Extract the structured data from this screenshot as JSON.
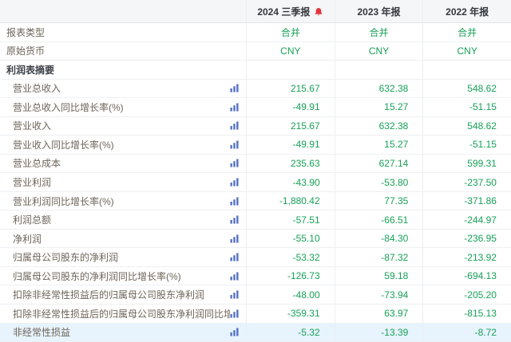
{
  "colors": {
    "value_green": "#18a058",
    "alert_red": "#e5353e",
    "chart_icon_blue": "#5470c6",
    "header_bg": "#f5f6f7",
    "highlight_bg": "#e7f3fd"
  },
  "table": {
    "columns": [
      {
        "label": "2024 三季报",
        "alert_icon": true
      },
      {
        "label": "2023 年报",
        "alert_icon": false
      },
      {
        "label": "2022 年报",
        "alert_icon": false
      }
    ],
    "rows": [
      {
        "label": "报表类型",
        "indent": false,
        "section": false,
        "chart_icon": false,
        "align": "center",
        "highlight": false,
        "values": [
          "合并",
          "合并",
          "合并"
        ]
      },
      {
        "label": "原始货币",
        "indent": false,
        "section": false,
        "chart_icon": false,
        "align": "center",
        "highlight": false,
        "values": [
          "CNY",
          "CNY",
          "CNY"
        ]
      },
      {
        "label": "利润表摘要",
        "indent": false,
        "section": true,
        "chart_icon": false,
        "align": "right",
        "highlight": false,
        "values": [
          "",
          "",
          ""
        ]
      },
      {
        "label": "营业总收入",
        "indent": true,
        "section": false,
        "chart_icon": true,
        "align": "right",
        "highlight": false,
        "values": [
          "215.67",
          "632.38",
          "548.62"
        ]
      },
      {
        "label": "营业总收入同比增长率(%)",
        "indent": true,
        "section": false,
        "chart_icon": true,
        "align": "right",
        "highlight": false,
        "values": [
          "-49.91",
          "15.27",
          "-51.15"
        ]
      },
      {
        "label": "营业收入",
        "indent": true,
        "section": false,
        "chart_icon": true,
        "align": "right",
        "highlight": false,
        "values": [
          "215.67",
          "632.38",
          "548.62"
        ]
      },
      {
        "label": "营业收入同比增长率(%)",
        "indent": true,
        "section": false,
        "chart_icon": true,
        "align": "right",
        "highlight": false,
        "values": [
          "-49.91",
          "15.27",
          "-51.15"
        ]
      },
      {
        "label": "营业总成本",
        "indent": true,
        "section": false,
        "chart_icon": true,
        "align": "right",
        "highlight": false,
        "values": [
          "235.63",
          "627.14",
          "599.31"
        ]
      },
      {
        "label": "营业利润",
        "indent": true,
        "section": false,
        "chart_icon": true,
        "align": "right",
        "highlight": false,
        "values": [
          "-43.90",
          "-53.80",
          "-237.50"
        ]
      },
      {
        "label": "营业利润同比增长率(%)",
        "indent": true,
        "section": false,
        "chart_icon": true,
        "align": "right",
        "highlight": false,
        "values": [
          "-1,880.42",
          "77.35",
          "-371.86"
        ]
      },
      {
        "label": "利润总额",
        "indent": true,
        "section": false,
        "chart_icon": true,
        "align": "right",
        "highlight": false,
        "values": [
          "-57.51",
          "-66.51",
          "-244.97"
        ]
      },
      {
        "label": "净利润",
        "indent": true,
        "section": false,
        "chart_icon": true,
        "align": "right",
        "highlight": false,
        "values": [
          "-55.10",
          "-84.30",
          "-236.95"
        ]
      },
      {
        "label": "归属母公司股东的净利润",
        "indent": true,
        "section": false,
        "chart_icon": true,
        "align": "right",
        "highlight": false,
        "values": [
          "-53.32",
          "-87.32",
          "-213.92"
        ]
      },
      {
        "label": "归属母公司股东的净利润同比增长率(%)",
        "indent": true,
        "section": false,
        "chart_icon": true,
        "align": "right",
        "highlight": false,
        "values": [
          "-126.73",
          "59.18",
          "-694.13"
        ]
      },
      {
        "label": "扣除非经常性损益后的归属母公司股东净利润",
        "indent": true,
        "section": false,
        "chart_icon": true,
        "align": "right",
        "highlight": false,
        "values": [
          "-48.00",
          "-73.94",
          "-205.20"
        ]
      },
      {
        "label": "扣除非经常性损益后的归属母公司股东净利润同比增...",
        "indent": true,
        "section": false,
        "chart_icon": true,
        "align": "right",
        "highlight": false,
        "values": [
          "-359.31",
          "63.97",
          "-815.13"
        ]
      },
      {
        "label": "非经常性损益",
        "indent": true,
        "section": false,
        "chart_icon": true,
        "align": "right",
        "highlight": true,
        "values": [
          "-5.32",
          "-13.39",
          "-8.72"
        ]
      }
    ]
  }
}
